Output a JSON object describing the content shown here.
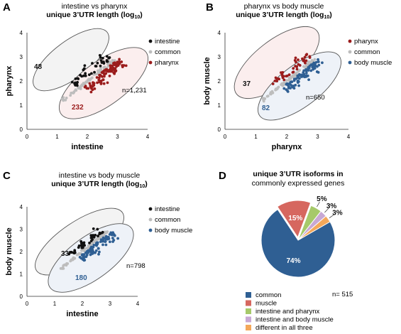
{
  "panels": {
    "A": {
      "letter": "A",
      "title_line1": "intestine vs pharynx",
      "title_line2": "unique 3’UTR length (log",
      "title_sub": "10",
      "title_close": ")"
    },
    "B": {
      "letter": "B",
      "title_line1": "pharynx vs body muscle",
      "title_line2": "unique 3’UTR length (log",
      "title_sub": "10",
      "title_close": ")"
    },
    "C": {
      "letter": "C",
      "title_line1": "intestine vs body muscle",
      "title_line2": "unique 3’UTR length (log",
      "title_sub": "10",
      "title_close": ")"
    },
    "D": {
      "letter": "D",
      "title_line1": "unique 3’UTR isoforms in",
      "title_line2": "commonly expressed genes"
    }
  },
  "colors": {
    "intestine": "#111111",
    "common": "#bdbdbd",
    "pharynx": "#9b1c1c",
    "body_muscle": "#2f5f93",
    "ellipse_stroke": "#555555",
    "pie_common": "#2f5f93",
    "pie_muscle": "#d6675f",
    "pie_int_phar": "#a6c96a",
    "pie_int_bm": "#c8a8d4",
    "pie_diff": "#f4a85a"
  },
  "chart_data": [
    {
      "id": "A",
      "type": "scatter",
      "title": "intestine vs pharynx unique 3’UTR length (log10)",
      "xlabel": "intestine",
      "ylabel": "pharynx",
      "xlim": [
        0,
        4
      ],
      "ylim": [
        0,
        4
      ],
      "xticks": [
        "0",
        "1",
        "2",
        "3",
        "4"
      ],
      "yticks": [
        "0",
        "1",
        "2",
        "3",
        "4"
      ],
      "legend": [
        "intestine",
        "common",
        "pharynx"
      ],
      "counts": {
        "upper": "48",
        "lower": "232"
      },
      "n_label": "n=1,231"
    },
    {
      "id": "B",
      "type": "scatter",
      "title": "pharynx vs body muscle unique 3’UTR length (log10)",
      "xlabel": "pharynx",
      "ylabel": "body muscle",
      "xlim": [
        0,
        4
      ],
      "ylim": [
        0,
        4
      ],
      "xticks": [
        "0",
        "1",
        "2",
        "3",
        "4"
      ],
      "yticks": [
        "0",
        "1",
        "2",
        "3",
        "4"
      ],
      "legend": [
        "pharynx",
        "common",
        "body muscle"
      ],
      "counts": {
        "upper": "37",
        "lower": "82"
      },
      "n_label": "n=650"
    },
    {
      "id": "C",
      "type": "scatter",
      "title": "intestine vs body muscle unique 3’UTR length (log10)",
      "xlabel": "intestine",
      "ylabel": "body muscle",
      "xlim": [
        0,
        4
      ],
      "ylim": [
        0,
        4
      ],
      "xticks": [
        "0",
        "1",
        "2",
        "3",
        "4"
      ],
      "yticks": [
        "0",
        "1",
        "2",
        "3",
        "4"
      ],
      "legend": [
        "intestine",
        "common",
        "body muscle"
      ],
      "counts": {
        "upper": "33",
        "lower": "180"
      },
      "n_label": "n=798"
    },
    {
      "id": "D",
      "type": "pie",
      "title": "unique 3’UTR isoforms in commonly expressed genes",
      "n_label": "n= 515",
      "slices": [
        {
          "label": "common",
          "value": 74,
          "pct_label": "74%"
        },
        {
          "label": "muscle",
          "value": 15,
          "pct_label": "15%"
        },
        {
          "label": "intestine and pharynx",
          "value": 5,
          "pct_label": "5%"
        },
        {
          "label": "intestine and body muscle",
          "value": 3,
          "pct_label": "3%"
        },
        {
          "label": "different in all three",
          "value": 3,
          "pct_label": "3%"
        }
      ]
    }
  ]
}
